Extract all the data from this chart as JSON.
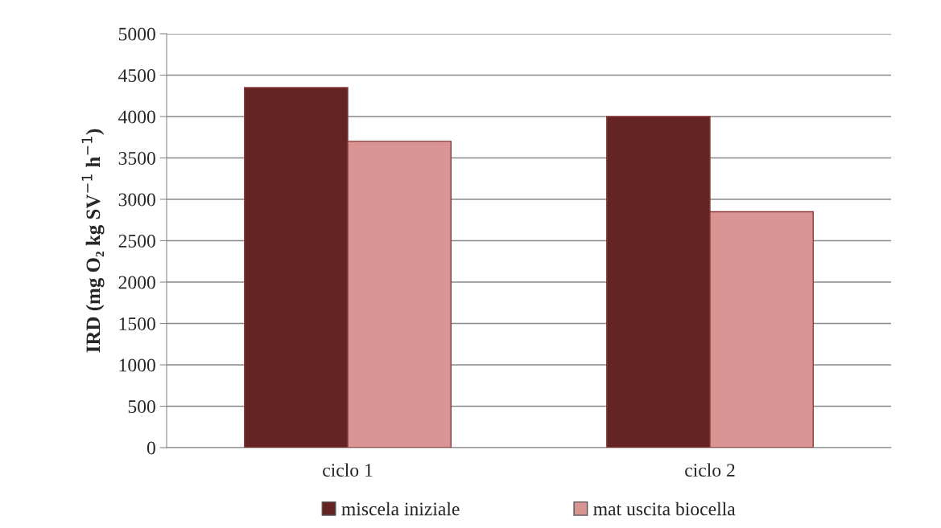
{
  "chart_data": {
    "type": "bar",
    "ylabel": "IRD (mg O₂ kg SV$^{−1}$ h$^{−1}$)",
    "categories": [
      "ciclo 1",
      "ciclo 2"
    ],
    "series": [
      {
        "name": "miscela iniziale",
        "color": "#632423",
        "values": [
          4350,
          4000
        ]
      },
      {
        "name": "mat uscita biocella",
        "color": "#d99594",
        "values": [
          3700,
          2850
        ]
      }
    ],
    "ylim": [
      0,
      5000
    ],
    "yticks": [
      0,
      500,
      1000,
      1500,
      2000,
      2500,
      3000,
      3500,
      4000,
      4500,
      5000
    ],
    "grid": "y",
    "legend": "bottom"
  }
}
